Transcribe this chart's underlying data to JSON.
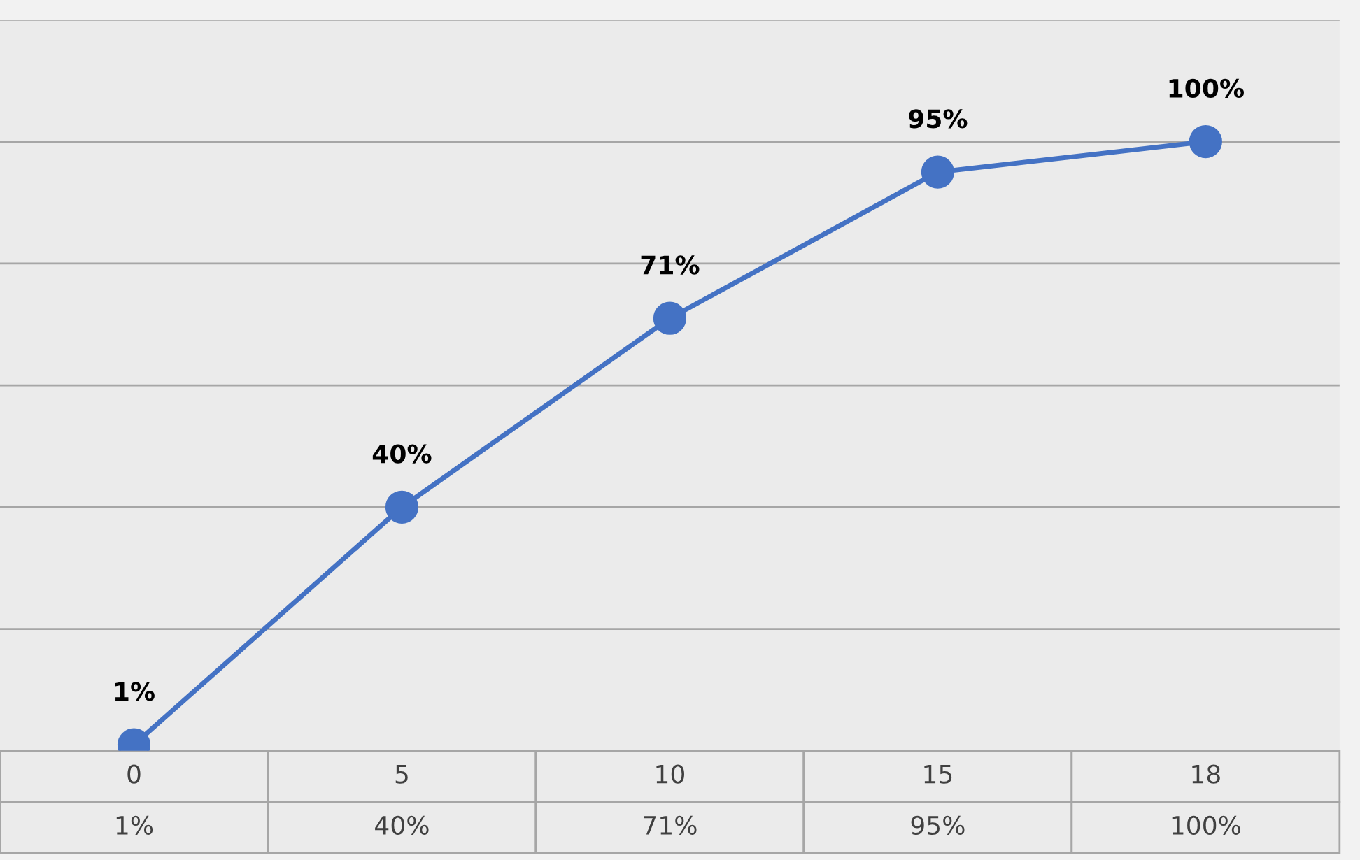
{
  "chart_data": {
    "type": "line",
    "categories": [
      "0",
      "5",
      "10",
      "15",
      "18"
    ],
    "series": [
      {
        "color": "#4472c4",
        "values": [
          1,
          40,
          71,
          95,
          100
        ],
        "value_labels": [
          "1%",
          "40%",
          "71%",
          "95%",
          "100%"
        ]
      }
    ],
    "ylim": [
      0,
      120
    ],
    "yticks": [
      {
        "value": 0,
        "label": null
      },
      {
        "value": 20,
        "label": null
      },
      {
        "value": 40,
        "label": null
      },
      {
        "value": 60,
        "label": null
      },
      {
        "value": 80,
        "label": null
      },
      {
        "value": 100,
        "label": null
      },
      {
        "value": 120,
        "label": null
      }
    ],
    "tick_labels": "x",
    "grid": "y",
    "marker": "circle",
    "line_style": "solid"
  }
}
